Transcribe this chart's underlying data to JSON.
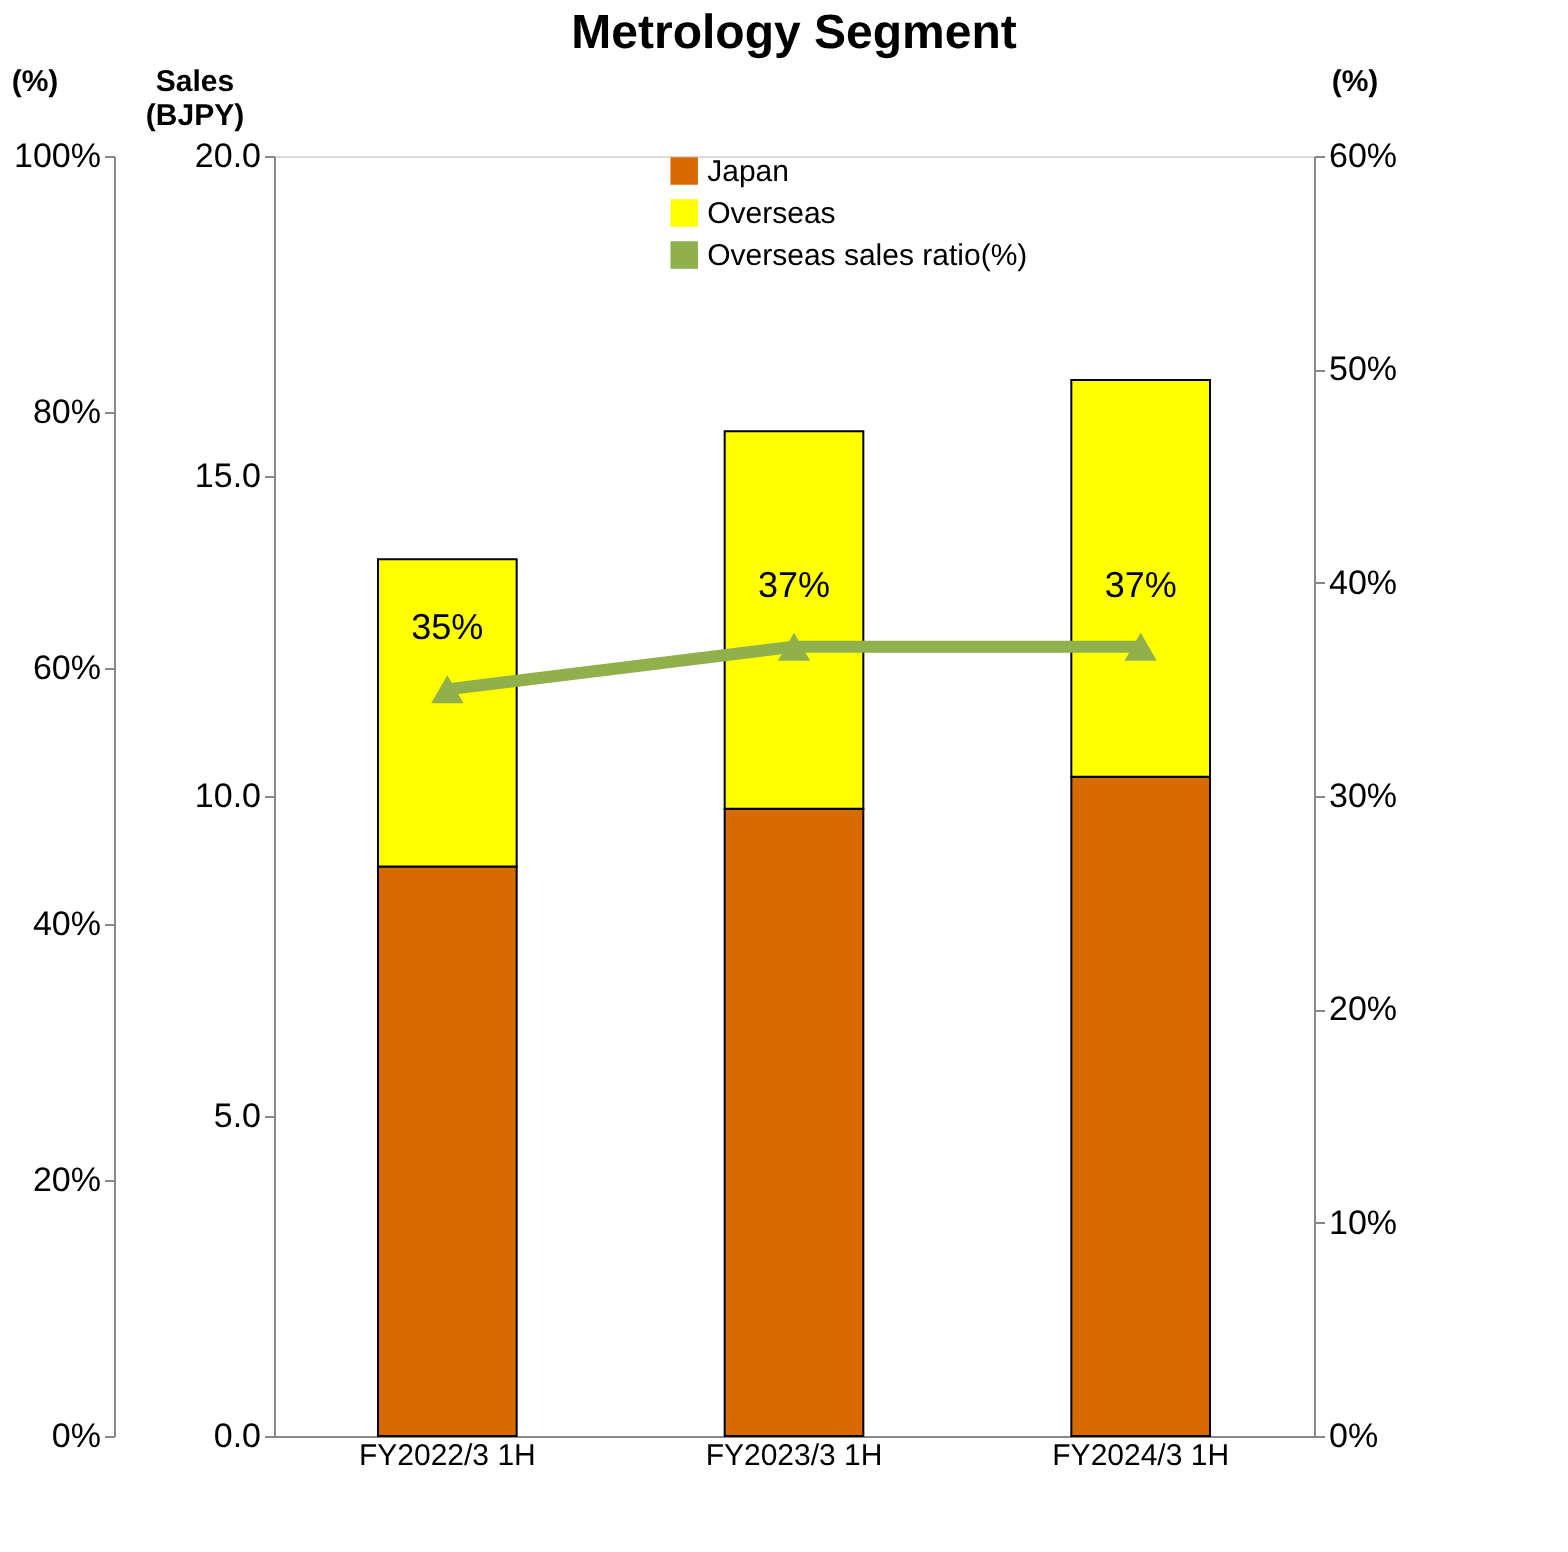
{
  "chart_data": {
    "type": "bar",
    "title": "Metrology Segment",
    "ylabel": "Sales (BJPY)",
    "y2label": "(%)",
    "y3label": "(%)",
    "categories": [
      "FY2022/3 1H",
      "FY2023/3 1H",
      "FY2024/3 1H"
    ],
    "stacked": true,
    "series": [
      {
        "name": "Japan",
        "color": "#d86b00",
        "values": [
          8.9,
          9.8,
          10.3
        ]
      },
      {
        "name": "Overseas",
        "color": "#ffff00",
        "values": [
          4.8,
          5.9,
          6.2
        ]
      },
      {
        "name": "Overseas sales ratio(%)",
        "type": "line",
        "axis": "y2",
        "color": "#8fb04a",
        "marker": "triangle",
        "values": [
          35,
          37,
          37
        ],
        "value_labels": [
          "35%",
          "37%",
          "37%"
        ]
      }
    ],
    "ylim": [
      0,
      20
    ],
    "yticks": [
      {
        "value": 0,
        "label": "0.0"
      },
      {
        "value": 5,
        "label": "5.0"
      },
      {
        "value": 10,
        "label": "10.0"
      },
      {
        "value": 15,
        "label": "15.0"
      },
      {
        "value": 20,
        "label": "20.0"
      }
    ],
    "y2lim": [
      0,
      60
    ],
    "y2ticks": [
      {
        "value": 0,
        "label": "0%"
      },
      {
        "value": 10,
        "label": "10%"
      },
      {
        "value": 20,
        "label": "20%"
      },
      {
        "value": 30,
        "label": "30%"
      },
      {
        "value": 40,
        "label": "40%"
      },
      {
        "value": 50,
        "label": "50%"
      },
      {
        "value": 60,
        "label": "60%"
      }
    ],
    "y3lim": [
      0,
      100
    ],
    "y3ticks": [
      {
        "value": 0,
        "label": "0%"
      },
      {
        "value": 20,
        "label": "20%"
      },
      {
        "value": 40,
        "label": "40%"
      },
      {
        "value": 60,
        "label": "60%"
      },
      {
        "value": 80,
        "label": "80%"
      },
      {
        "value": 100,
        "label": "100%"
      }
    ],
    "grid": false,
    "legend": "top"
  }
}
